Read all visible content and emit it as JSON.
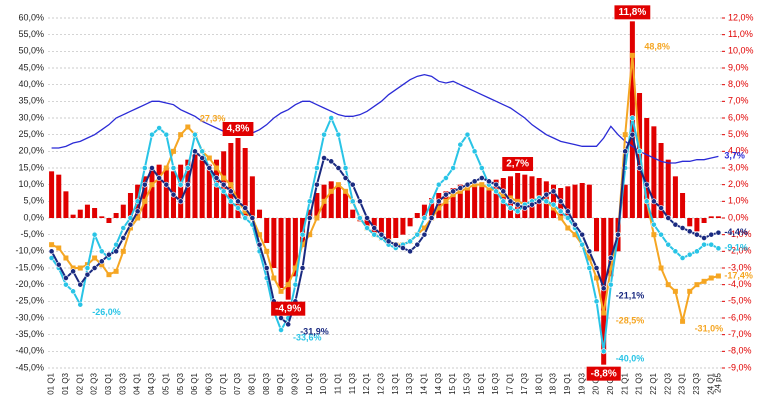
{
  "chart_data": {
    "type": "combo",
    "categories": [
      "01 Q1",
      null,
      "01 Q3",
      null,
      "02 Q1",
      null,
      "02 Q3",
      null,
      "03 Q1",
      null,
      "03 Q3",
      null,
      "04 Q1",
      null,
      "04 Q3",
      null,
      "05 Q1",
      null,
      "05 Q3",
      null,
      "06 Q1",
      null,
      "06 Q3",
      null,
      "07 Q1",
      null,
      "07 Q3",
      null,
      "08 Q1",
      null,
      "08 Q3",
      null,
      "09 Q1",
      null,
      "09 Q3",
      null,
      "10 Q1",
      null,
      "10 Q3",
      null,
      "11 Q1",
      null,
      "11 Q3",
      null,
      "12 Q1",
      null,
      "12 Q3",
      null,
      "13 Q1",
      null,
      "13 Q3",
      null,
      "14 Q1",
      null,
      "14 Q3",
      null,
      "15 Q1",
      null,
      "15 Q3",
      null,
      "16 Q1",
      null,
      "16 Q3",
      null,
      "17 Q1",
      null,
      "17 Q3",
      null,
      "18 Q1",
      null,
      "18 Q3",
      null,
      "19 Q1",
      null,
      "19 Q3",
      null,
      "20 Q1",
      null,
      "20 Q3",
      null,
      "21 Q1",
      null,
      "21 Q3",
      null,
      "22 Q1",
      null,
      "22 Q3",
      null,
      "23 Q1",
      null,
      "23 Q3",
      null,
      "24 Q1",
      "24 p5"
    ],
    "ylim": [
      -45,
      60
    ],
    "yticks": [
      {
        "value": 60,
        "label": "60,0%"
      },
      {
        "value": 55,
        "label": "55,0%"
      },
      {
        "value": 50,
        "label": "50,0%"
      },
      {
        "value": 45,
        "label": "45,0%"
      },
      {
        "value": 40,
        "label": "40,0%"
      },
      {
        "value": 35,
        "label": "35,0%"
      },
      {
        "value": 30,
        "label": "30,0%"
      },
      {
        "value": 25,
        "label": "25,0%"
      },
      {
        "value": 20,
        "label": "20,0%"
      },
      {
        "value": 15,
        "label": "15,0%"
      },
      {
        "value": 10,
        "label": "10,0%"
      },
      {
        "value": 5,
        "label": "5,0%"
      },
      {
        "value": 0,
        "label": "0,0%"
      },
      {
        "value": -5,
        "label": "-5,0%"
      },
      {
        "value": -10,
        "label": "-10,0%"
      },
      {
        "value": -15,
        "label": "-15,0%"
      },
      {
        "value": -20,
        "label": "-20,0%"
      },
      {
        "value": -25,
        "label": "-25,0%"
      },
      {
        "value": -30,
        "label": "-30,0%"
      },
      {
        "value": -35,
        "label": "-35,0%"
      },
      {
        "value": -40,
        "label": "-40,0%"
      },
      {
        "value": -45,
        "label": "-45,0%"
      }
    ],
    "y2lim": [
      -9,
      12
    ],
    "y2ticks": [
      {
        "value": 12,
        "label": "12,0%"
      },
      {
        "value": 11,
        "label": "11,0%"
      },
      {
        "value": 10,
        "label": "10,0%"
      },
      {
        "value": 9,
        "label": "9,0%"
      },
      {
        "value": 8,
        "label": "8,0%"
      },
      {
        "value": 7,
        "label": "7,0%"
      },
      {
        "value": 6,
        "label": "6,0%"
      },
      {
        "value": 5,
        "label": "5,0%"
      },
      {
        "value": 4,
        "label": "4,0%"
      },
      {
        "value": 3,
        "label": "3,0%"
      },
      {
        "value": 2,
        "label": "2,0%"
      },
      {
        "value": 1,
        "label": "1,0%"
      },
      {
        "value": 0,
        "label": "0,0%"
      },
      {
        "value": -1,
        "label": "-1,0%"
      },
      {
        "value": -2,
        "label": "-2,0%"
      },
      {
        "value": -3,
        "label": "-3,0%"
      },
      {
        "value": -4,
        "label": "-4,0%"
      },
      {
        "value": -5,
        "label": "-5,0%"
      },
      {
        "value": -6,
        "label": "-6,0%"
      },
      {
        "value": -7,
        "label": "-7,0%"
      },
      {
        "value": -8,
        "label": "-8,0%"
      },
      {
        "value": -9,
        "label": "-9,0%"
      }
    ],
    "y2tick_color": "#e00000",
    "grid": true,
    "series": [
      {
        "type": "bar",
        "axis": "y2",
        "color": "#e00000",
        "values": [
          2.8,
          2.6,
          1.6,
          0.2,
          0.5,
          0.8,
          0.6,
          0.1,
          -0.3,
          0.3,
          0.8,
          1.5,
          2.0,
          2.5,
          3.0,
          3.2,
          3.0,
          2.8,
          3.2,
          3.5,
          3.8,
          3.5,
          3.2,
          3.5,
          4.0,
          4.5,
          4.8,
          4.2,
          2.5,
          0.5,
          -1.5,
          -3.0,
          -4.2,
          -4.9,
          -3.5,
          -1.5,
          0.5,
          1.5,
          2.0,
          2.2,
          2.0,
          1.5,
          0.5,
          -0.2,
          -0.5,
          -1.0,
          -1.2,
          -1.3,
          -1.2,
          -1.0,
          -0.5,
          0.3,
          0.8,
          1.2,
          1.5,
          1.6,
          1.8,
          2.0,
          2.1,
          2.0,
          1.9,
          2.2,
          2.3,
          2.4,
          2.5,
          2.7,
          2.6,
          2.5,
          2.4,
          2.2,
          2.0,
          1.8,
          1.9,
          2.0,
          2.1,
          2.0,
          -2.0,
          -8.8,
          -3.5,
          -2.0,
          2.0,
          11.8,
          7.5,
          6.0,
          5.5,
          4.5,
          3.5,
          2.5,
          1.5,
          -0.5,
          -0.8,
          -0.3,
          0.1,
          0.1
        ],
        "value_labels": [
          null,
          null,
          null,
          null,
          null,
          null,
          null,
          null,
          null,
          null,
          null,
          null,
          null,
          null,
          null,
          null,
          null,
          null,
          null,
          null,
          null,
          null,
          null,
          null,
          null,
          null,
          "4,8%",
          null,
          null,
          null,
          null,
          null,
          null,
          "-4,9%",
          null,
          null,
          null,
          null,
          null,
          null,
          null,
          null,
          null,
          null,
          null,
          null,
          null,
          null,
          null,
          null,
          null,
          null,
          null,
          null,
          null,
          null,
          null,
          null,
          null,
          null,
          null,
          null,
          null,
          null,
          null,
          "2,7%",
          null,
          null,
          null,
          null,
          null,
          null,
          null,
          null,
          null,
          null,
          null,
          "-8,8%",
          null,
          null,
          null,
          "11,8%",
          null,
          null,
          null,
          null,
          null,
          null,
          null,
          null,
          null,
          null,
          null,
          null
        ]
      },
      {
        "type": "line",
        "axis": "y2",
        "color": "#2b2bd6",
        "values": [
          4.2,
          4.2,
          4.3,
          4.5,
          4.6,
          4.8,
          5.0,
          5.3,
          5.6,
          6.0,
          6.2,
          6.4,
          6.6,
          6.8,
          7.0,
          7.0,
          6.9,
          6.8,
          6.5,
          6.3,
          6.1,
          5.8,
          5.6,
          5.4,
          5.2,
          5.1,
          5.0,
          5.0,
          5.1,
          5.3,
          5.6,
          6.0,
          6.3,
          6.5,
          6.8,
          7.0,
          7.0,
          6.8,
          6.6,
          6.4,
          6.2,
          6.1,
          6.1,
          6.2,
          6.4,
          6.7,
          7.0,
          7.4,
          7.7,
          8.0,
          8.3,
          8.5,
          8.6,
          8.5,
          8.2,
          8.1,
          8.2,
          8.0,
          7.8,
          7.6,
          7.4,
          7.2,
          7.0,
          6.8,
          6.6,
          6.3,
          6.0,
          5.6,
          5.3,
          5.0,
          4.8,
          4.6,
          4.5,
          4.4,
          4.3,
          4.3,
          4.3,
          4.8,
          5.5,
          5.0,
          4.6,
          4.3,
          4.0,
          3.8,
          3.6,
          3.4,
          3.3,
          3.3,
          3.4,
          3.4,
          3.5,
          3.5,
          3.6,
          3.7
        ],
        "value_labels": [
          null,
          null,
          null,
          null,
          null,
          null,
          null,
          null,
          null,
          null,
          null,
          null,
          null,
          null,
          null,
          null,
          null,
          null,
          null,
          null,
          null,
          null,
          null,
          null,
          null,
          null,
          null,
          null,
          null,
          null,
          null,
          null,
          null,
          null,
          null,
          null,
          null,
          null,
          null,
          null,
          null,
          null,
          null,
          null,
          null,
          null,
          null,
          null,
          null,
          null,
          null,
          null,
          null,
          null,
          null,
          null,
          null,
          null,
          null,
          null,
          null,
          null,
          null,
          null,
          null,
          null,
          null,
          null,
          null,
          null,
          null,
          null,
          null,
          null,
          null,
          null,
          null,
          null,
          null,
          null,
          null,
          null,
          null,
          null,
          null,
          null,
          null,
          null,
          null,
          null,
          null,
          null,
          null,
          "3,7%"
        ]
      },
      {
        "type": "line",
        "axis": "y",
        "color": "#f5a623",
        "marker": "square",
        "values": [
          -8,
          -9,
          -12,
          -15,
          -15,
          -14,
          -12,
          -14,
          -17,
          -16,
          -10,
          -3,
          0,
          5,
          10,
          12,
          15,
          20,
          25,
          27.3,
          25,
          20,
          18,
          15,
          12,
          10,
          5,
          2,
          0,
          -5,
          -10,
          -18,
          -22,
          -20,
          -15,
          -8,
          -5,
          0,
          5,
          8,
          10,
          8,
          5,
          0,
          -3,
          -5,
          -6,
          -7,
          -8,
          -8,
          -7,
          -5,
          -3,
          0,
          3,
          5,
          7,
          8,
          9,
          10,
          10,
          9,
          8,
          7,
          6,
          5,
          4,
          5,
          6,
          5,
          3,
          0,
          -3,
          -5,
          -8,
          -12,
          -18,
          -28.5,
          -15,
          -5,
          25,
          48.8,
          20,
          5,
          -5,
          -15,
          -20,
          -22,
          -31,
          -22,
          -20,
          -19,
          -18,
          -17.4
        ],
        "value_labels": [
          null,
          null,
          null,
          null,
          null,
          null,
          null,
          null,
          null,
          null,
          null,
          null,
          null,
          null,
          null,
          null,
          null,
          null,
          null,
          "27,3%",
          null,
          null,
          null,
          null,
          null,
          null,
          null,
          null,
          null,
          null,
          null,
          null,
          null,
          null,
          null,
          null,
          null,
          null,
          null,
          null,
          null,
          null,
          null,
          null,
          null,
          null,
          null,
          null,
          null,
          null,
          null,
          null,
          null,
          null,
          null,
          null,
          null,
          null,
          null,
          null,
          null,
          null,
          null,
          null,
          null,
          null,
          null,
          null,
          null,
          null,
          null,
          null,
          null,
          null,
          null,
          null,
          null,
          "-28,5%",
          null,
          null,
          null,
          "48,8%",
          null,
          null,
          null,
          null,
          null,
          null,
          "-31,0%",
          null,
          null,
          null,
          null,
          "-17,4%"
        ]
      },
      {
        "type": "line",
        "axis": "y",
        "color": "#29c4e6",
        "marker": "circle",
        "values": [
          -12,
          -15,
          -20,
          -22,
          -26,
          -15,
          -5,
          -10,
          -12,
          -8,
          -3,
          0,
          5,
          15,
          25,
          27,
          25,
          15,
          10,
          15,
          25,
          20,
          15,
          10,
          8,
          5,
          3,
          0,
          -2,
          -10,
          -18,
          -28,
          -33.6,
          -30,
          -20,
          -5,
          5,
          15,
          25,
          30,
          25,
          15,
          5,
          0,
          -3,
          -5,
          -6,
          -8,
          -9,
          -8,
          -7,
          -5,
          0,
          5,
          10,
          12,
          15,
          22,
          25,
          20,
          15,
          10,
          8,
          5,
          3,
          2,
          4,
          5,
          6,
          5,
          4,
          2,
          0,
          -3,
          -8,
          -15,
          -25,
          -40,
          -20,
          -5,
          15,
          30,
          20,
          5,
          -2,
          -5,
          -8,
          -10,
          -12,
          -11,
          -10,
          -8,
          -8,
          -9.1
        ],
        "value_labels": [
          null,
          null,
          null,
          null,
          "-26,0%",
          null,
          null,
          null,
          null,
          null,
          null,
          null,
          null,
          null,
          null,
          null,
          null,
          null,
          null,
          null,
          null,
          null,
          null,
          null,
          null,
          null,
          null,
          null,
          null,
          null,
          null,
          null,
          "-33,6%",
          null,
          null,
          null,
          null,
          null,
          null,
          null,
          null,
          null,
          null,
          null,
          null,
          null,
          null,
          null,
          null,
          null,
          null,
          null,
          null,
          null,
          null,
          null,
          null,
          null,
          null,
          null,
          null,
          null,
          null,
          null,
          null,
          null,
          null,
          null,
          null,
          null,
          null,
          null,
          null,
          null,
          null,
          null,
          null,
          "-40,0%",
          null,
          null,
          null,
          null,
          null,
          null,
          null,
          null,
          null,
          null,
          null,
          null,
          null,
          null,
          null,
          "-9,1%"
        ]
      },
      {
        "type": "line",
        "axis": "y",
        "color": "#1a2a80",
        "marker": "circle",
        "values": [
          -10,
          -14,
          -18,
          -16,
          -20,
          -17,
          -15,
          -13,
          -11,
          -10,
          -6,
          -2,
          2,
          10,
          15,
          12,
          10,
          7,
          5,
          10,
          20,
          18,
          15,
          12,
          10,
          8,
          5,
          3,
          0,
          -8,
          -15,
          -25,
          -30,
          -31.9,
          -25,
          -15,
          0,
          10,
          18,
          17,
          15,
          12,
          10,
          5,
          0,
          -3,
          -5,
          -7,
          -8,
          -9,
          -10,
          -8,
          -5,
          0,
          5,
          7,
          8,
          9,
          10,
          11,
          12,
          11,
          10,
          8,
          5,
          4,
          3,
          4,
          5,
          7,
          8,
          5,
          2,
          -2,
          -5,
          -10,
          -15,
          -21.1,
          -12,
          -5,
          20,
          25,
          15,
          10,
          5,
          3,
          0,
          -2,
          -3,
          -4,
          -5,
          -6,
          -5,
          -4.4
        ],
        "value_labels": [
          null,
          null,
          null,
          null,
          null,
          null,
          null,
          null,
          null,
          null,
          null,
          null,
          null,
          null,
          null,
          null,
          null,
          null,
          null,
          null,
          null,
          null,
          null,
          null,
          null,
          null,
          null,
          null,
          null,
          null,
          null,
          null,
          null,
          "-31,9%",
          null,
          null,
          null,
          null,
          null,
          null,
          null,
          null,
          null,
          null,
          null,
          null,
          null,
          null,
          null,
          null,
          null,
          null,
          null,
          null,
          null,
          null,
          null,
          null,
          null,
          null,
          null,
          null,
          null,
          null,
          null,
          null,
          null,
          null,
          null,
          null,
          null,
          null,
          null,
          null,
          null,
          null,
          null,
          "-21,1%",
          null,
          null,
          null,
          null,
          null,
          null,
          null,
          null,
          null,
          null,
          null,
          null,
          null,
          null,
          null,
          "-4,4%"
        ]
      }
    ]
  }
}
